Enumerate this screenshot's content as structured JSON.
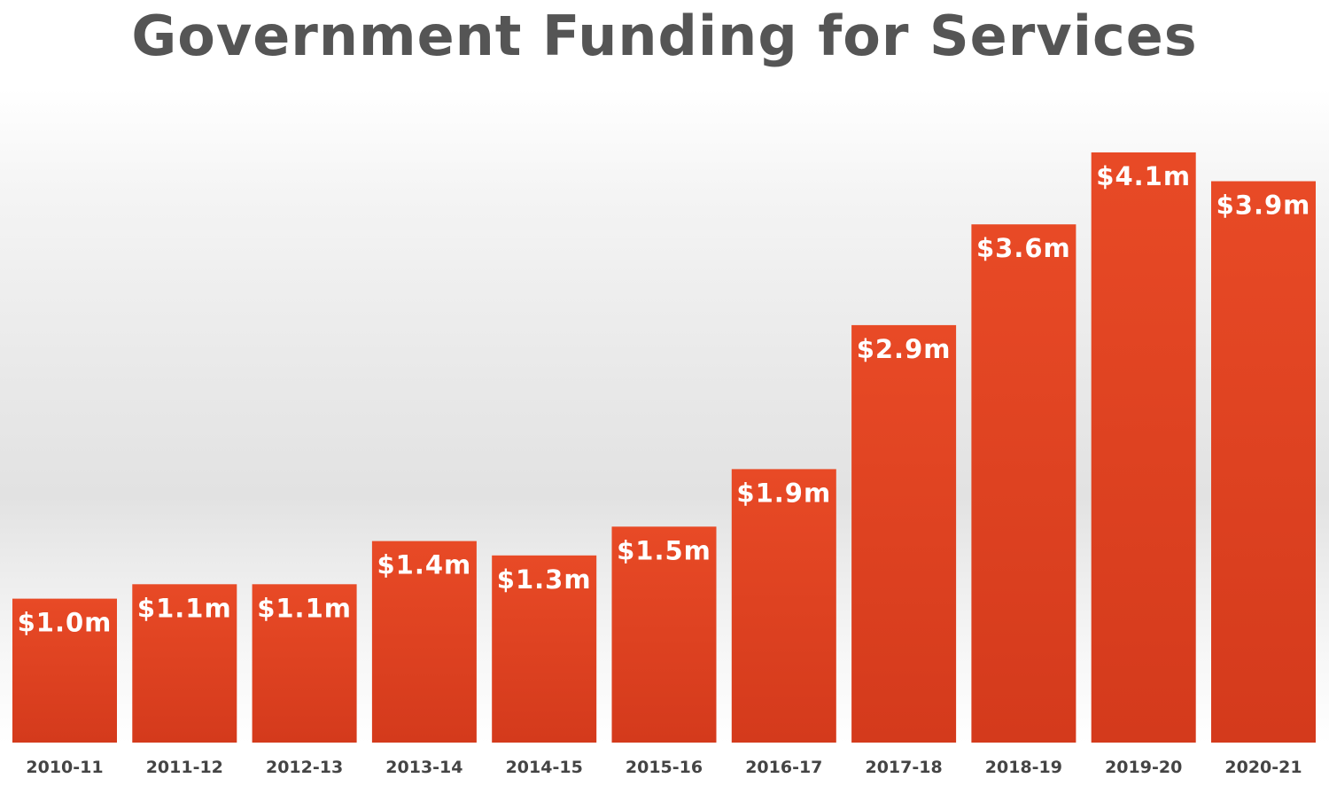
{
  "chart_data": {
    "type": "bar",
    "title": "Government Funding for Services",
    "xlabel": "",
    "ylabel": "",
    "categories": [
      "2010-11",
      "2011-12",
      "2012-13",
      "2013-14",
      "2014-15",
      "2015-16",
      "2016-17",
      "2017-18",
      "2018-19",
      "2019-20",
      "2020-21"
    ],
    "values": [
      1.0,
      1.1,
      1.1,
      1.4,
      1.3,
      1.5,
      1.9,
      2.9,
      3.6,
      4.1,
      3.9
    ],
    "data_labels": [
      "$1.0m",
      "$1.1m",
      "$1.1m",
      "$1.4m",
      "$1.3m",
      "$1.5m",
      "$1.9m",
      "$2.9m",
      "$3.6m",
      "$4.1m",
      "$3.9m"
    ],
    "ylim": [
      0,
      4.1
    ],
    "grid": false,
    "legend": "none",
    "colors": {
      "bar_top": "#e84a26",
      "bar_bottom": "#d43a1c",
      "title": "#555555",
      "tick": "#444444",
      "data_label": "#ffffff"
    }
  }
}
